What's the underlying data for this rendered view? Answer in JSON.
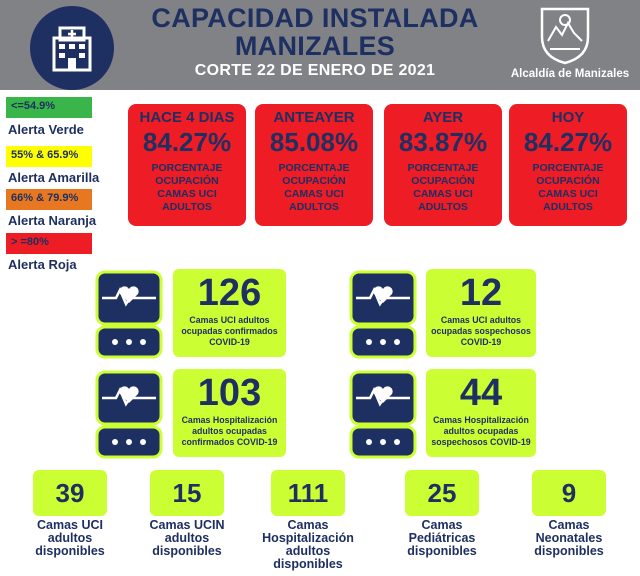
{
  "header": {
    "title_line1": "CAPACIDAD INSTALADA",
    "title_line2": "MANIZALES",
    "subtitle": "CORTE 22 DE ENERO DE 2021",
    "org": "Alcaldía de Manizales",
    "logo_icon": "hospital-building-icon",
    "crest_icon": "coat-of-arms-icon"
  },
  "legend": [
    {
      "range": "<=54.9%",
      "label": "Alerta Verde",
      "color": "#39b54a"
    },
    {
      "range": "55% & 65.9%",
      "label": "Alerta Amarilla",
      "color": "#ffff00"
    },
    {
      "range": "66% & 79.9%",
      "label": "Alerta Naranja",
      "color": "#e87722"
    },
    {
      "range": "> =80%",
      "label": "Alerta Roja",
      "color": "#ee1c24"
    }
  ],
  "days": [
    {
      "title": "HACE 4 DIAS",
      "value": "84.27%",
      "desc1": "PORCENTAJE",
      "desc2": "OCUPACIÓN",
      "desc3": "CAMAS UCI",
      "desc4": "ADULTOS"
    },
    {
      "title": "ANTEAYER",
      "value": "85.08%",
      "desc1": "PORCENTAJE",
      "desc2": "OCUPACIÓN",
      "desc3": "CAMAS UCI",
      "desc4": "ADULTOS"
    },
    {
      "title": "AYER",
      "value": "83.87%",
      "desc1": "PORCENTAJE",
      "desc2": "OCUPACIÓN",
      "desc3": "CAMAS UCI",
      "desc4": "ADULTOS"
    },
    {
      "title": "HOY",
      "value": "84.27%",
      "desc1": "PORCENTAJE",
      "desc2": "OCUPACIÓN",
      "desc3": "CAMAS UCI",
      "desc4": "ADULTOS"
    }
  ],
  "stats": [
    {
      "value": "126",
      "line1": "Camas UCI adultos",
      "line2": "ocupadas confirmados",
      "line3": "COVID-19"
    },
    {
      "value": "12",
      "line1": "Camas UCI adultos",
      "line2": "ocupadas sospechosos",
      "line3": "COVID-19"
    },
    {
      "value": "103",
      "line1": "Camas Hospitalización",
      "line2": "adultos ocupadas",
      "line3": "confirmados COVID-19"
    },
    {
      "value": "44",
      "line1": "Camas Hospitalización",
      "line2": "adultos ocupadas",
      "line3": "sospechosos COVID-19"
    }
  ],
  "monitor_icon": "heart-monitor-icon",
  "bottom": [
    {
      "value": "39",
      "line1": "Camas UCI",
      "line2": "adultos",
      "line3": "disponibles"
    },
    {
      "value": "15",
      "line1": "Camas UCIN",
      "line2": "adultos",
      "line3": "disponibles"
    },
    {
      "value": "111",
      "line1": "Camas",
      "line2": "Hospitalización",
      "line3": "adultos",
      "line4": "disponibles"
    },
    {
      "value": "25",
      "line1": "Camas",
      "line2": "Pediátricas",
      "line3": "disponibles"
    },
    {
      "value": "9",
      "line1": "Camas",
      "line2": "Neonatales",
      "line3": "disponibles"
    }
  ]
}
